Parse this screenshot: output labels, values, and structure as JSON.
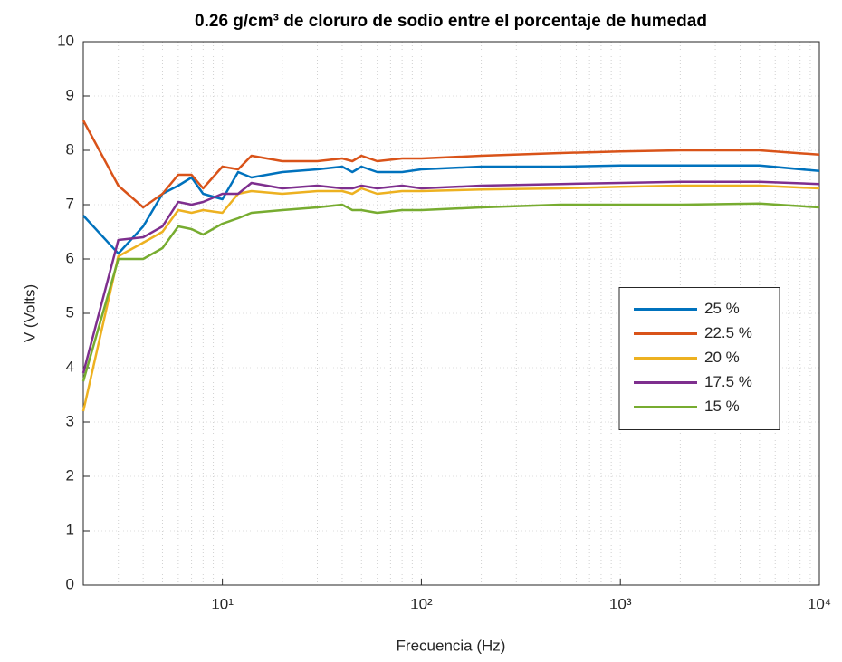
{
  "chart_data": {
    "type": "line",
    "title": "0.26 g/cm³ de cloruro de sodio entre el porcentaje de humedad",
    "xlabel": "Frecuencia (Hz)",
    "ylabel": "V (Volts)",
    "xscale": "log",
    "grid": true,
    "minor_grid": true,
    "legend_position": "east",
    "xlim": [
      2,
      10000
    ],
    "ylim": [
      0,
      10
    ],
    "xticks": [
      {
        "value": 10,
        "label": "10¹"
      },
      {
        "value": 100,
        "label": "10²"
      },
      {
        "value": 1000,
        "label": "10³"
      },
      {
        "value": 10000,
        "label": "10⁴"
      }
    ],
    "yticks": [
      0,
      1,
      2,
      3,
      4,
      5,
      6,
      7,
      8,
      9,
      10
    ],
    "x": [
      2,
      3,
      4,
      5,
      6,
      7,
      8,
      10,
      12,
      14,
      20,
      30,
      40,
      45,
      50,
      60,
      80,
      100,
      200,
      500,
      1000,
      2000,
      5000,
      10000
    ],
    "series": [
      {
        "name": "25 %",
        "color": "#0072BD",
        "values": [
          6.8,
          6.1,
          6.6,
          7.2,
          7.35,
          7.5,
          7.2,
          7.1,
          7.6,
          7.5,
          7.6,
          7.65,
          7.7,
          7.6,
          7.7,
          7.6,
          7.6,
          7.65,
          7.7,
          7.7,
          7.72,
          7.72,
          7.72,
          7.62
        ]
      },
      {
        "name": "22.5 %",
        "color": "#D95319",
        "values": [
          8.55,
          7.35,
          6.95,
          7.2,
          7.55,
          7.55,
          7.3,
          7.7,
          7.65,
          7.9,
          7.8,
          7.8,
          7.85,
          7.8,
          7.9,
          7.8,
          7.85,
          7.85,
          7.9,
          7.95,
          7.98,
          8.0,
          8.0,
          7.92
        ]
      },
      {
        "name": "20 %",
        "color": "#EDB120",
        "values": [
          3.2,
          6.05,
          6.3,
          6.5,
          6.9,
          6.85,
          6.9,
          6.85,
          7.2,
          7.25,
          7.2,
          7.25,
          7.25,
          7.2,
          7.3,
          7.2,
          7.25,
          7.25,
          7.28,
          7.3,
          7.33,
          7.35,
          7.35,
          7.3
        ]
      },
      {
        "name": "17.5 %",
        "color": "#7E2F8E",
        "values": [
          3.9,
          6.35,
          6.4,
          6.6,
          7.05,
          7.0,
          7.05,
          7.2,
          7.2,
          7.4,
          7.3,
          7.35,
          7.3,
          7.3,
          7.35,
          7.3,
          7.35,
          7.3,
          7.35,
          7.38,
          7.4,
          7.42,
          7.42,
          7.38
        ]
      },
      {
        "name": "15 %",
        "color": "#77AC30",
        "values": [
          3.75,
          6.0,
          6.0,
          6.2,
          6.6,
          6.55,
          6.45,
          6.65,
          6.75,
          6.85,
          6.9,
          6.95,
          7.0,
          6.9,
          6.9,
          6.85,
          6.9,
          6.9,
          6.95,
          7.0,
          7.0,
          7.0,
          7.02,
          6.95
        ]
      }
    ]
  }
}
